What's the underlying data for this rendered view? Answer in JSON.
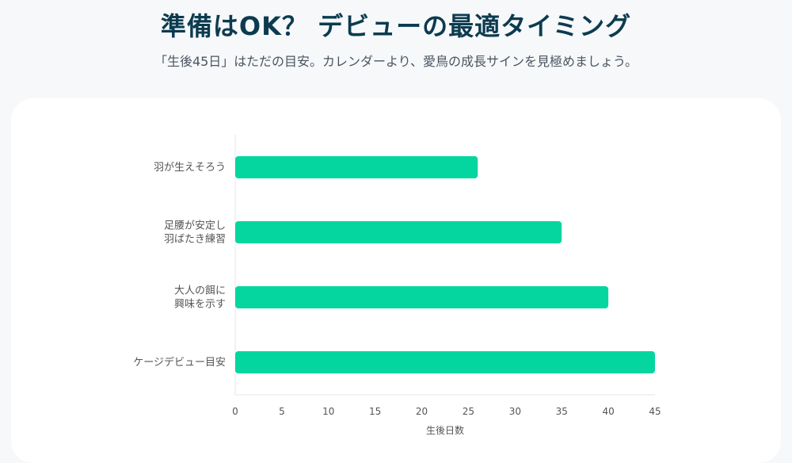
{
  "page": {
    "title": "準備はOK？ デビューの最適タイミング",
    "subtitle": "「生後45日」はただの目安。カレンダーより、愛鳥の成長サインを見極めましょう。"
  },
  "chart_data": {
    "type": "bar",
    "orientation": "horizontal",
    "categories": [
      [
        "羽が生えそろう"
      ],
      [
        "足腰が安定し",
        "羽ばたき練習"
      ],
      [
        "大人の餌に",
        "興味を示す"
      ],
      [
        "ケージデビュー目安"
      ]
    ],
    "values": [
      26,
      35,
      40,
      45
    ],
    "xlabel": "生後日数",
    "ylabel": "",
    "xlim": [
      0,
      45
    ],
    "xticks": [
      0,
      5,
      10,
      15,
      20,
      25,
      30,
      35,
      40,
      45
    ],
    "grid": false,
    "legend": "none",
    "bar_color": "#05d6a0"
  }
}
